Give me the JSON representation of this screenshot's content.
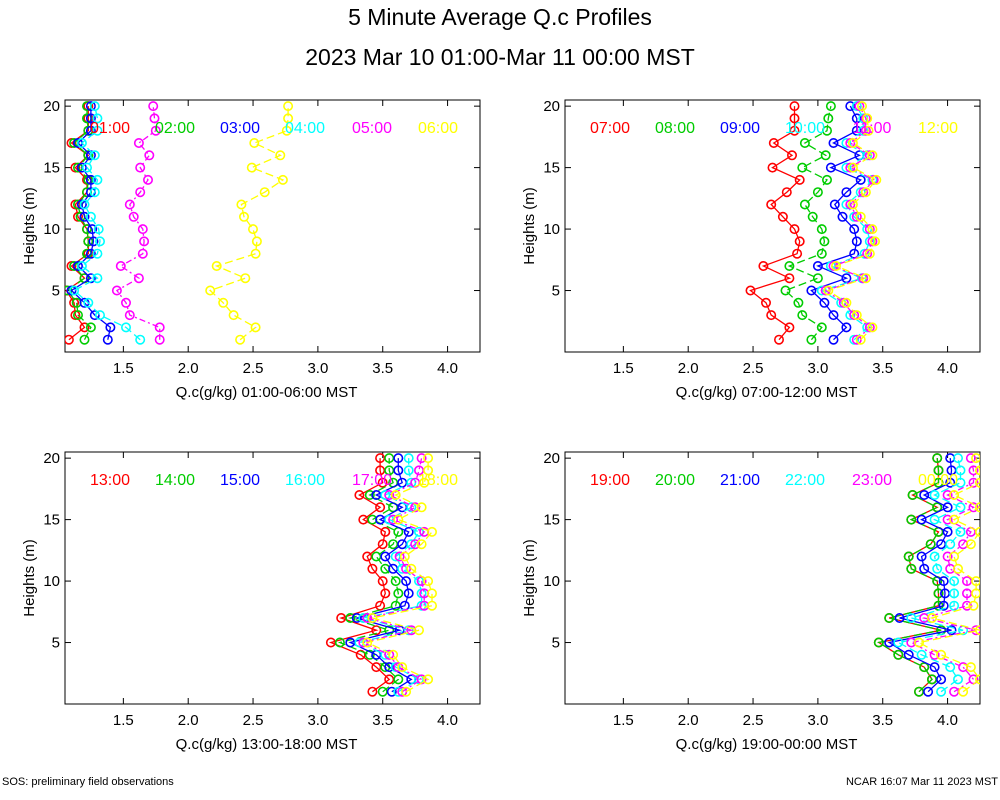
{
  "title": "5 Minute Average Q.c Profiles",
  "subtitle": "2023 Mar 10 01:00-Mar 11 00:00 MST",
  "footer": {
    "left": "SOS: preliminary field observations",
    "right": "NCAR 16:07 Mar 11 2023 MST"
  },
  "heights": [
    1,
    2,
    3,
    4,
    5,
    6,
    7,
    8,
    9,
    10,
    11,
    12,
    13,
    14,
    15,
    16,
    17,
    18,
    19,
    20
  ],
  "chart_data": [
    {
      "type": "line",
      "xlabel": "Q.c(g/kg) 01:00-06:00 MST",
      "ylabel": "Heights (m)",
      "xlim": [
        1.05,
        4.25
      ],
      "ylim": [
        0,
        20.5
      ],
      "xticks": [
        "1.5",
        "2.0",
        "2.5",
        "3.0",
        "3.5",
        "4.0"
      ],
      "yticks": [
        "5",
        "10",
        "15",
        "20"
      ],
      "series": [
        {
          "name": "01:00",
          "color": "#ff0000",
          "values": [
            1.08,
            1.2,
            1.13,
            1.12,
            1.06,
            1.2,
            1.1,
            1.23,
            1.23,
            1.22,
            1.15,
            1.13,
            1.22,
            1.22,
            1.13,
            1.23,
            1.1,
            1.23,
            1.23,
            1.23
          ]
        },
        {
          "name": "02:00",
          "color": "#00cc00",
          "values": [
            1.2,
            1.25,
            1.15,
            1.14,
            1.07,
            1.2,
            1.12,
            1.22,
            1.23,
            1.22,
            1.17,
            1.15,
            1.22,
            1.23,
            1.15,
            1.23,
            1.12,
            1.23,
            1.22,
            1.22
          ]
        },
        {
          "name": "03:00",
          "color": "#0000ff",
          "values": [
            1.38,
            1.4,
            1.28,
            1.2,
            1.1,
            1.25,
            1.15,
            1.25,
            1.27,
            1.26,
            1.2,
            1.18,
            1.25,
            1.25,
            1.18,
            1.25,
            1.15,
            1.25,
            1.25,
            1.25
          ]
        },
        {
          "name": "04:00",
          "color": "#00ffff",
          "values": [
            1.63,
            1.52,
            1.32,
            1.23,
            1.12,
            1.3,
            1.18,
            1.3,
            1.32,
            1.31,
            1.25,
            1.2,
            1.28,
            1.3,
            1.22,
            1.28,
            1.18,
            1.3,
            1.3,
            1.28
          ]
        },
        {
          "name": "05:00",
          "color": "#ff00ff",
          "values": [
            1.78,
            1.78,
            1.55,
            1.52,
            1.45,
            1.62,
            1.48,
            1.65,
            1.66,
            1.65,
            1.58,
            1.55,
            1.63,
            1.69,
            1.63,
            1.7,
            1.62,
            1.75,
            1.74,
            1.73
          ]
        },
        {
          "name": "06:00",
          "color": "#ffff00",
          "values": [
            2.4,
            2.52,
            2.35,
            2.27,
            2.17,
            2.44,
            2.22,
            2.52,
            2.53,
            2.5,
            2.43,
            2.41,
            2.59,
            2.73,
            2.49,
            2.71,
            2.51,
            2.76,
            2.77,
            2.77
          ]
        }
      ]
    },
    {
      "type": "line",
      "xlabel": "Q.c(g/kg) 07:00-12:00 MST",
      "ylabel": "Heights (m)",
      "xlim": [
        1.05,
        4.25
      ],
      "ylim": [
        0,
        20.5
      ],
      "xticks": [
        "1.5",
        "2.0",
        "2.5",
        "3.0",
        "3.5",
        "4.0"
      ],
      "yticks": [
        "5",
        "10",
        "15",
        "20"
      ],
      "series": [
        {
          "name": "07:00",
          "color": "#ff0000",
          "values": [
            2.7,
            2.78,
            2.64,
            2.6,
            2.48,
            2.78,
            2.58,
            2.84,
            2.86,
            2.82,
            2.73,
            2.64,
            2.76,
            2.86,
            2.65,
            2.8,
            2.66,
            2.82,
            2.82,
            2.82
          ]
        },
        {
          "name": "08:00",
          "color": "#00cc00",
          "values": [
            2.95,
            3.03,
            2.88,
            2.85,
            2.75,
            3.0,
            2.78,
            3.03,
            3.05,
            3.03,
            2.96,
            2.9,
            3.0,
            3.07,
            2.88,
            3.06,
            2.9,
            3.07,
            3.08,
            3.1
          ]
        },
        {
          "name": "09:00",
          "color": "#0000ff",
          "values": [
            3.12,
            3.22,
            3.12,
            3.05,
            2.95,
            3.22,
            3.0,
            3.28,
            3.3,
            3.28,
            3.19,
            3.13,
            3.22,
            3.33,
            3.1,
            3.32,
            3.12,
            3.3,
            3.3,
            3.25
          ]
        },
        {
          "name": "10:00",
          "color": "#00ffff",
          "values": [
            3.28,
            3.38,
            3.25,
            3.18,
            3.03,
            3.34,
            3.1,
            3.36,
            3.4,
            3.38,
            3.28,
            3.22,
            3.33,
            3.42,
            3.22,
            3.38,
            3.22,
            3.35,
            3.35,
            3.3
          ]
        },
        {
          "name": "11:00",
          "color": "#ff00ff",
          "values": [
            3.3,
            3.4,
            3.28,
            3.2,
            3.06,
            3.35,
            3.12,
            3.38,
            3.42,
            3.4,
            3.3,
            3.25,
            3.35,
            3.43,
            3.25,
            3.4,
            3.25,
            3.37,
            3.37,
            3.32
          ]
        },
        {
          "name": "12:00",
          "color": "#ffff00",
          "values": [
            3.33,
            3.42,
            3.3,
            3.22,
            3.08,
            3.37,
            3.14,
            3.4,
            3.44,
            3.42,
            3.33,
            3.27,
            3.37,
            3.45,
            3.27,
            3.42,
            3.27,
            3.39,
            3.38,
            3.34
          ]
        }
      ]
    },
    {
      "type": "line",
      "xlabel": "Q.c(g/kg) 13:00-18:00 MST",
      "ylabel": "Heights (m)",
      "xlim": [
        1.05,
        4.25
      ],
      "ylim": [
        0,
        20.5
      ],
      "xticks": [
        "1.5",
        "2.0",
        "2.5",
        "3.0",
        "3.5",
        "4.0"
      ],
      "yticks": [
        "5",
        "10",
        "15",
        "20"
      ],
      "series": [
        {
          "name": "13:00",
          "color": "#ff0000",
          "values": [
            3.42,
            3.55,
            3.45,
            3.33,
            3.1,
            3.45,
            3.18,
            3.48,
            3.52,
            3.5,
            3.42,
            3.38,
            3.5,
            3.52,
            3.35,
            3.48,
            3.32,
            3.5,
            3.48,
            3.48
          ]
        },
        {
          "name": "14:00",
          "color": "#00cc00",
          "values": [
            3.5,
            3.62,
            3.52,
            3.4,
            3.17,
            3.55,
            3.25,
            3.6,
            3.62,
            3.6,
            3.52,
            3.45,
            3.58,
            3.62,
            3.42,
            3.58,
            3.4,
            3.58,
            3.55,
            3.55
          ]
        },
        {
          "name": "15:00",
          "color": "#0000ff",
          "values": [
            3.57,
            3.72,
            3.55,
            3.45,
            3.25,
            3.63,
            3.3,
            3.67,
            3.7,
            3.68,
            3.58,
            3.52,
            3.65,
            3.7,
            3.48,
            3.65,
            3.45,
            3.65,
            3.62,
            3.62
          ]
        },
        {
          "name": "16:00",
          "color": "#00ffff",
          "values": [
            3.62,
            3.78,
            3.6,
            3.52,
            3.32,
            3.7,
            3.35,
            3.8,
            3.8,
            3.78,
            3.65,
            3.6,
            3.72,
            3.78,
            3.55,
            3.72,
            3.52,
            3.72,
            3.7,
            3.7
          ]
        },
        {
          "name": "17:00",
          "color": "#ff00ff",
          "values": [
            3.65,
            3.8,
            3.62,
            3.55,
            3.35,
            3.72,
            3.38,
            3.82,
            3.82,
            3.8,
            3.68,
            3.63,
            3.75,
            3.82,
            3.58,
            3.75,
            3.55,
            3.75,
            3.78,
            3.8
          ]
        },
        {
          "name": "18:00",
          "color": "#ffff00",
          "values": [
            3.68,
            3.85,
            3.65,
            3.58,
            3.38,
            3.78,
            3.42,
            3.88,
            3.88,
            3.85,
            3.72,
            3.67,
            3.8,
            3.88,
            3.62,
            3.8,
            3.6,
            3.82,
            3.85,
            3.85
          ]
        }
      ]
    },
    {
      "type": "line",
      "xlabel": "Q.c(g/kg) 19:00-00:00 MST",
      "ylabel": "Heights (m)",
      "xlim": [
        1.05,
        4.25
      ],
      "ylim": [
        0,
        20.5
      ],
      "xticks": [
        "1.5",
        "2.0",
        "2.5",
        "3.0",
        "3.5",
        "4.0"
      ],
      "yticks": [
        "5",
        "10",
        "15",
        "20"
      ],
      "series": [
        {
          "name": "19:00",
          "color": "#ff0000",
          "values": [
            3.78,
            3.88,
            3.82,
            3.62,
            3.47,
            3.95,
            3.55,
            3.93,
            3.93,
            3.92,
            3.72,
            3.7,
            3.87,
            3.93,
            3.72,
            3.92,
            3.73,
            3.93,
            3.93,
            3.92
          ]
        },
        {
          "name": "20:00",
          "color": "#00cc00",
          "values": [
            3.78,
            3.88,
            3.82,
            3.62,
            3.47,
            3.95,
            3.55,
            3.93,
            3.93,
            3.92,
            3.72,
            3.7,
            3.87,
            3.93,
            3.72,
            3.92,
            3.73,
            3.93,
            3.93,
            3.92
          ]
        },
        {
          "name": "21:00",
          "color": "#0000ff",
          "values": [
            3.85,
            3.95,
            3.9,
            3.7,
            3.55,
            4.03,
            3.63,
            3.97,
            3.98,
            3.97,
            3.82,
            3.8,
            3.95,
            4.0,
            3.8,
            4.0,
            3.82,
            4.02,
            4.03,
            4.02
          ]
        },
        {
          "name": "22:00",
          "color": "#00ffff",
          "values": [
            3.95,
            4.08,
            4.02,
            3.8,
            3.62,
            4.12,
            3.72,
            4.05,
            4.05,
            4.05,
            3.92,
            3.9,
            4.02,
            4.1,
            3.9,
            4.1,
            3.9,
            4.1,
            4.1,
            4.08
          ]
        },
        {
          "name": "23:00",
          "color": "#ff00ff",
          "values": [
            4.05,
            4.2,
            4.12,
            3.9,
            3.72,
            4.22,
            3.82,
            4.15,
            4.15,
            4.15,
            4.02,
            4.0,
            4.12,
            4.18,
            4.0,
            4.2,
            4.0,
            4.2,
            4.2,
            4.18
          ]
        },
        {
          "name": "00:00",
          "color": "#ffff00",
          "values": [
            4.12,
            4.25,
            4.18,
            3.95,
            3.78,
            4.25,
            3.88,
            4.2,
            4.22,
            4.22,
            4.08,
            4.05,
            4.18,
            4.25,
            4.05,
            4.25,
            4.05,
            4.25,
            4.25,
            4.22
          ]
        }
      ]
    }
  ]
}
